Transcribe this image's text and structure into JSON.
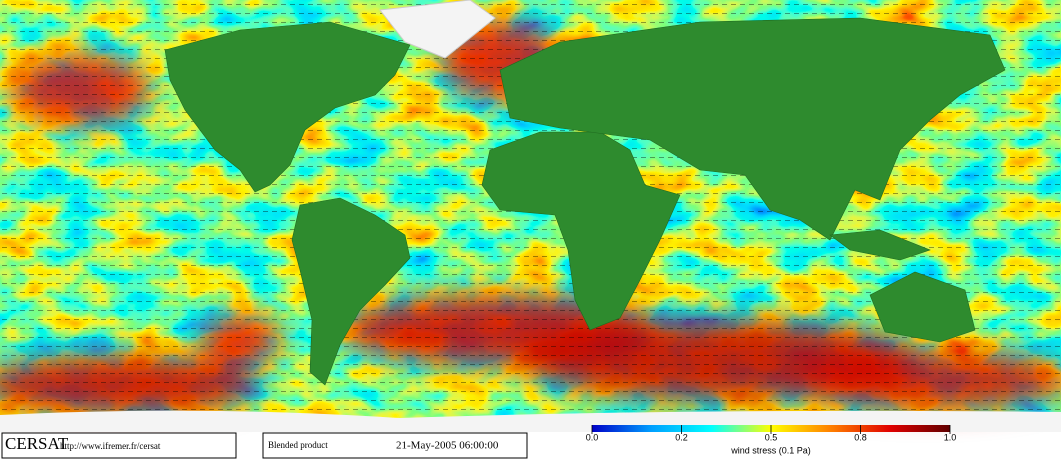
{
  "footer": {
    "logo": "CERSAT",
    "url": "http://www.ifremer.fr/cersat",
    "product": "Blended product",
    "date": "21-May-2005 06:00:00"
  },
  "colorbar": {
    "label": "wind stress (0.1 Pa)",
    "colors": [
      "#0000c8",
      "#00a0ff",
      "#00ffff",
      "#ffff00",
      "#ff8000",
      "#e00000",
      "#600000"
    ],
    "ticks": [
      {
        "value": 0,
        "label": "0.0"
      },
      0.2,
      0.5,
      0.8,
      {
        "value": 1,
        "label": "1.0"
      }
    ]
  }
}
